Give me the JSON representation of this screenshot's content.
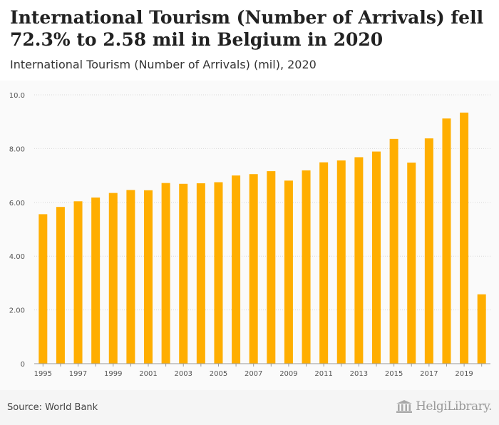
{
  "header": {
    "title": "International Tourism (Number of Arrivals) fell 72.3% to 2.58 mil in Belgium in 2020",
    "subtitle": "International Tourism (Number of Arrivals) (mil), 2020"
  },
  "footer": {
    "source": "Source: World Bank",
    "brand": "HelgiLibrary.",
    "brand_icon": "building-columns-icon"
  },
  "colors": {
    "bar": "#ffae00",
    "grid": "#d8d8d8",
    "tick_text": "#555555",
    "axis": "#999999"
  },
  "chart_data": {
    "type": "bar",
    "title": "International Tourism (Number of Arrivals) (mil)",
    "xlabel": "",
    "ylabel": "",
    "ylim": [
      0,
      10
    ],
    "yticks": [
      0,
      2,
      4,
      6,
      8,
      10
    ],
    "ytick_labels": [
      "0",
      "2.00",
      "4.00",
      "6.00",
      "8.00",
      "10.0"
    ],
    "categories": [
      "1995",
      "1996",
      "1997",
      "1998",
      "1999",
      "2000",
      "2001",
      "2002",
      "2003",
      "2004",
      "2005",
      "2006",
      "2007",
      "2008",
      "2009",
      "2010",
      "2011",
      "2012",
      "2013",
      "2014",
      "2015",
      "2016",
      "2017",
      "2018",
      "2019",
      "2020"
    ],
    "xtick_labels": [
      "1995",
      "1997",
      "1999",
      "2001",
      "2003",
      "2005",
      "2007",
      "2009",
      "2011",
      "2013",
      "2015",
      "2017",
      "2019"
    ],
    "values": [
      5.56,
      5.83,
      6.04,
      6.18,
      6.35,
      6.46,
      6.45,
      6.72,
      6.69,
      6.71,
      6.75,
      7.0,
      7.05,
      7.16,
      6.81,
      7.19,
      7.49,
      7.56,
      7.68,
      7.89,
      8.36,
      7.48,
      8.38,
      9.12,
      9.34,
      2.58
    ]
  }
}
